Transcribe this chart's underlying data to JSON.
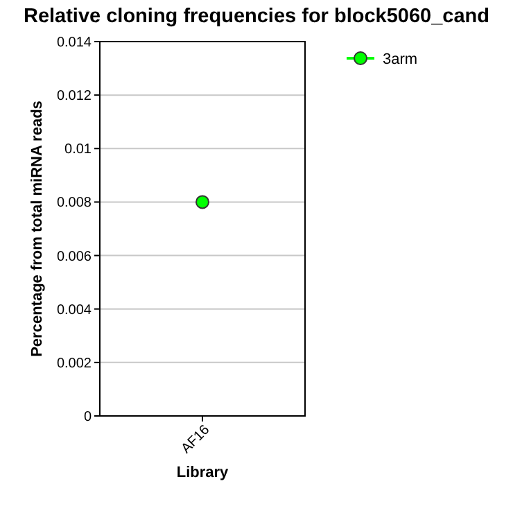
{
  "chart_data": {
    "type": "line",
    "title": "Relative cloning frequencies for block5060_cand",
    "xlabel": "Library",
    "ylabel": "Percentage from total miRNA reads",
    "categories": [
      "AF16"
    ],
    "series": [
      {
        "name": "3arm",
        "color": "#00ff00",
        "values": [
          0.008
        ]
      }
    ],
    "ylim": [
      0,
      0.014
    ],
    "yticks": [
      0,
      0.002,
      0.004,
      0.006,
      0.008,
      0.01,
      0.012,
      0.014
    ],
    "grid": "y",
    "legend": "top right",
    "marker": "circle",
    "line_style": "solid"
  }
}
